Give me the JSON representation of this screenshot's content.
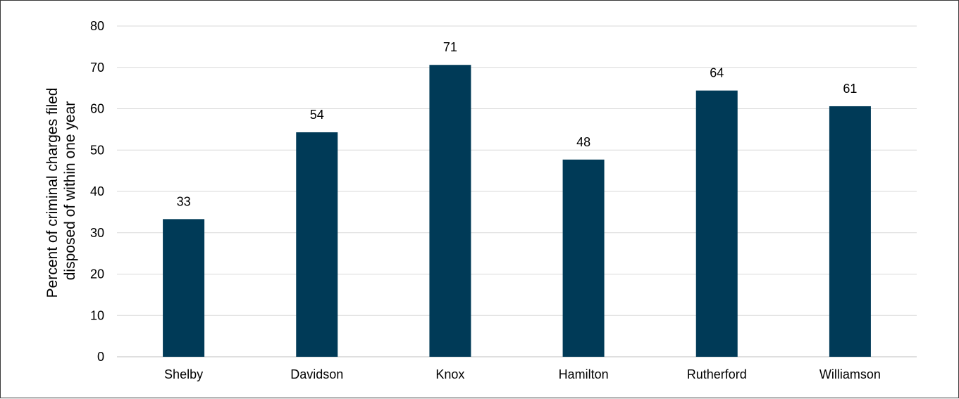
{
  "chart_data": {
    "type": "bar",
    "title": "",
    "xlabel": "",
    "ylabel": [
      "Percent of criminal charges filed",
      "disposed of within one year"
    ],
    "categories": [
      "Shelby",
      "Davidson",
      "Knox",
      "Hamilton",
      "Rutherford",
      "Williamson"
    ],
    "values": [
      33.3,
      54.3,
      70.6,
      47.7,
      64.4,
      60.6
    ],
    "data_labels": [
      "33",
      "54",
      "71",
      "48",
      "64",
      "61"
    ],
    "ylim": [
      0,
      80
    ],
    "yticks": [
      0,
      10,
      20,
      30,
      40,
      50,
      60,
      70,
      80
    ],
    "grid": true,
    "legend": "none",
    "colors": {
      "bar": "#003a57",
      "grid": "#d9d9d9",
      "frame": "#3a3a3a"
    }
  }
}
